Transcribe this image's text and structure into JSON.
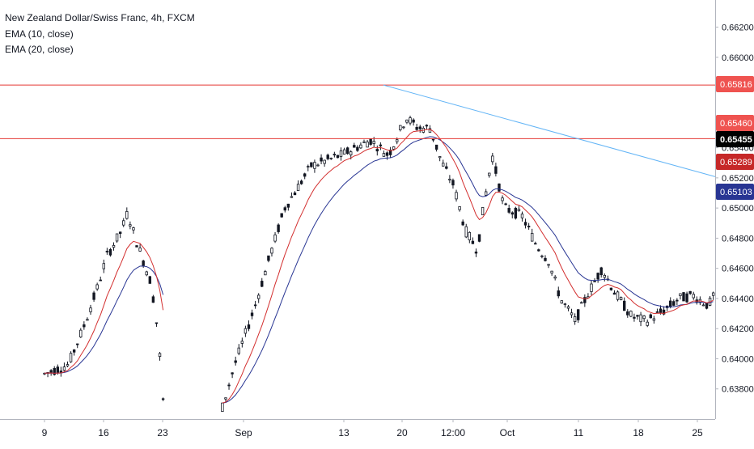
{
  "legend": {
    "title": "New Zealand Dollar/Swiss Franc, 4h, FXCM",
    "ema10": "EMA (10, close)",
    "ema20": "EMA (20, close)"
  },
  "colors": {
    "candle": "#131722",
    "ema10": "#d32f2f",
    "ema20": "#283593",
    "hline": "#e53935",
    "trendline": "#64b5f6",
    "label_top": "#ef5350",
    "label_mid": "#ef5350",
    "label_last": "#000000",
    "label_ema10": "#c62828",
    "label_ema20": "#283593"
  },
  "chart_data": {
    "type": "candlestick",
    "symbol": "New Zealand Dollar/Swiss Franc",
    "timeframe": "4h",
    "source": "FXCM",
    "y_ticks": [
      "0.66200",
      "0.66000",
      "0.65800",
      "0.65600",
      "0.65400",
      "0.65200",
      "0.65000",
      "0.64800",
      "0.64600",
      "0.64400",
      "0.64200",
      "0.64000",
      "0.63800"
    ],
    "ylim": [
      0.636,
      0.6638
    ],
    "x_ticks": [
      "9",
      "16",
      "23",
      "Sep",
      "13",
      "20",
      "12:00",
      "Oct",
      "11",
      "18",
      "25"
    ],
    "grid": false,
    "horizontal_lines": [
      0.65816,
      0.6546
    ],
    "trendline": {
      "from": [
        0.5,
        0.65816
      ],
      "to": [
        7.5,
        0.65208
      ]
    },
    "price_labels": {
      "top": "0.65816",
      "mid": "0.65460",
      "last": "0.65455",
      "ema10": "0.65289",
      "ema20": "0.65103"
    },
    "path_keypoints": [
      [
        0,
        0.639
      ],
      [
        0.4,
        0.6396
      ],
      [
        0.65,
        0.642
      ],
      [
        0.9,
        0.6448
      ],
      [
        1.05,
        0.6468
      ],
      [
        1.3,
        0.6485
      ],
      [
        1.4,
        0.6497
      ],
      [
        1.55,
        0.6478
      ],
      [
        1.8,
        0.645
      ],
      [
        1.92,
        0.6415
      ],
      [
        2.0,
        0.6372
      ]
    ],
    "path_keypoints_2": [
      [
        3.0,
        0.6368
      ],
      [
        3.2,
        0.6395
      ],
      [
        3.55,
        0.6435
      ],
      [
        3.8,
        0.6468
      ],
      [
        4.05,
        0.65
      ],
      [
        4.5,
        0.6528
      ],
      [
        5.0,
        0.6535
      ],
      [
        5.5,
        0.6545
      ],
      [
        5.8,
        0.6535
      ],
      [
        6.1,
        0.656
      ],
      [
        6.3,
        0.6553
      ],
      [
        6.5,
        0.6553
      ],
      [
        6.7,
        0.653
      ],
      [
        6.9,
        0.6515
      ],
      [
        7.1,
        0.6485
      ],
      [
        7.3,
        0.6472
      ],
      [
        7.4,
        0.65
      ],
      [
        7.55,
        0.6535
      ],
      [
        7.75,
        0.65
      ],
      [
        8.05,
        0.6495
      ],
      [
        8.3,
        0.6475
      ],
      [
        8.5,
        0.6465
      ],
      [
        8.7,
        0.644
      ],
      [
        8.95,
        0.6425
      ],
      [
        9.15,
        0.6442
      ],
      [
        9.4,
        0.646
      ],
      [
        9.6,
        0.6445
      ],
      [
        9.9,
        0.6428
      ],
      [
        10.15,
        0.6425
      ],
      [
        10.45,
        0.6432
      ],
      [
        10.7,
        0.644
      ],
      [
        10.95,
        0.6442
      ],
      [
        11.2,
        0.6435
      ],
      [
        11.45,
        0.6458
      ],
      [
        11.75,
        0.649
      ],
      [
        11.95,
        0.652
      ],
      [
        12.1,
        0.6528
      ],
      [
        12.35,
        0.6545
      ]
    ]
  }
}
